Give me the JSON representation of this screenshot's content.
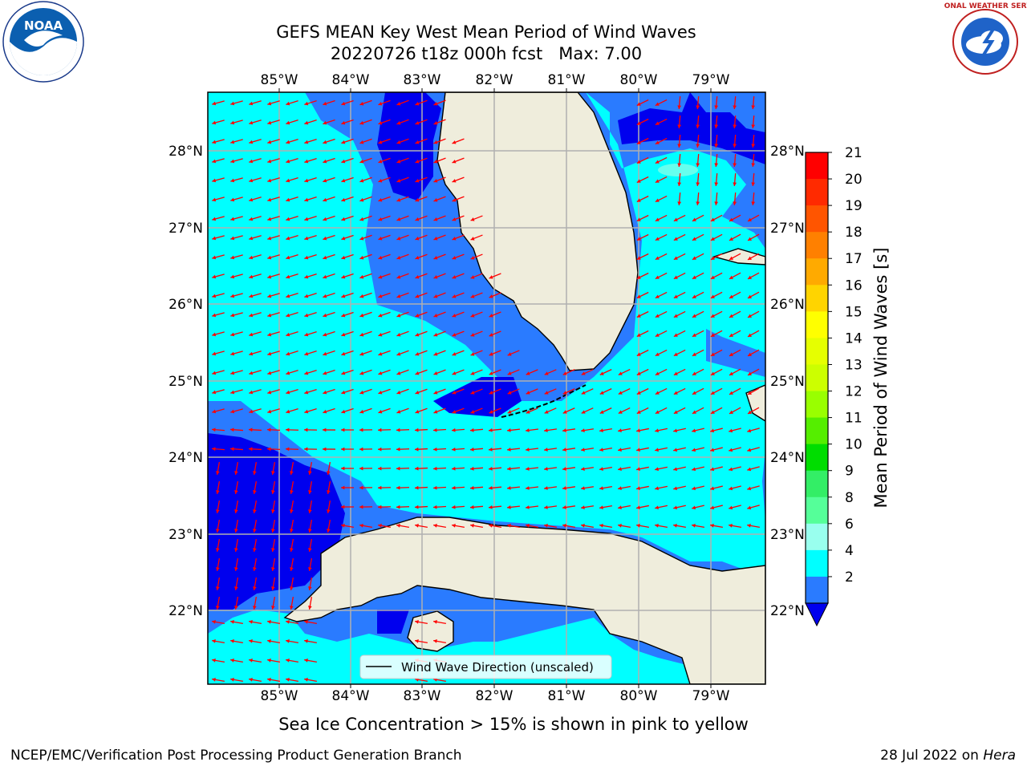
{
  "title": {
    "line1": "GEFS MEAN Key West Mean Period of Wind Waves",
    "line2": "20220726 t18z 000h fcst   Max: 7.00"
  },
  "map": {
    "lon_ticks": [
      "85°W",
      "84°W",
      "83°W",
      "82°W",
      "81°W",
      "80°W",
      "79°W"
    ],
    "lat_ticks": [
      "28°N",
      "27°N",
      "26°N",
      "25°N",
      "24°N",
      "23°N",
      "22°N"
    ],
    "legend_label": "Wind Wave Direction (unscaled)",
    "colors": {
      "land": "#efeddc",
      "band_2_4": "#2a7bff",
      "band_4_6": "#00ffff",
      "band_below_2": "#0000ee",
      "arrow": "#ff0000",
      "grid": "#b0b0b0"
    }
  },
  "colorbar": {
    "label": "Mean Period of Wind Waves [s]",
    "levels": [
      "21",
      "20",
      "19",
      "18",
      "17",
      "16",
      "15",
      "14",
      "13",
      "12",
      "11",
      "10",
      "9",
      "8",
      "6",
      "4",
      "2"
    ],
    "bands": [
      {
        "from": 20,
        "to": 21,
        "color": "#ff0000"
      },
      {
        "from": 19,
        "to": 20,
        "color": "#ff2a00"
      },
      {
        "from": 18,
        "to": 19,
        "color": "#ff5500"
      },
      {
        "from": 17,
        "to": 18,
        "color": "#ff8000"
      },
      {
        "from": 16,
        "to": 17,
        "color": "#ffaa00"
      },
      {
        "from": 15,
        "to": 16,
        "color": "#ffd400"
      },
      {
        "from": 14,
        "to": 15,
        "color": "#ffff00"
      },
      {
        "from": 13,
        "to": 14,
        "color": "#e6ff00"
      },
      {
        "from": 12,
        "to": 13,
        "color": "#ccff00"
      },
      {
        "from": 11,
        "to": 12,
        "color": "#99ff00"
      },
      {
        "from": 10,
        "to": 11,
        "color": "#55ee00"
      },
      {
        "from": 9,
        "to": 10,
        "color": "#00dd00"
      },
      {
        "from": 8,
        "to": 9,
        "color": "#33ee66"
      },
      {
        "from": 6,
        "to": 8,
        "color": "#55ff99"
      },
      {
        "from": 4,
        "to": 6,
        "color": "#99ffee"
      },
      {
        "from": 2,
        "to": 4,
        "color": "#00ffff"
      },
      {
        "from": 0,
        "to": 2,
        "color": "#2a7bff"
      },
      {
        "from": -1,
        "to": 0,
        "color": "#0000ee"
      }
    ]
  },
  "subtitle": "Sea Ice Concentration > 15% is shown in pink to yellow",
  "footer": {
    "left": "NCEP/EMC/Verification Post Processing Product Generation Branch",
    "date": "28 Jul 2022 on",
    "host": "Hera"
  },
  "logos": {
    "noaa": "NOAA",
    "nws": "NATIONAL WEATHER SERVICE"
  }
}
